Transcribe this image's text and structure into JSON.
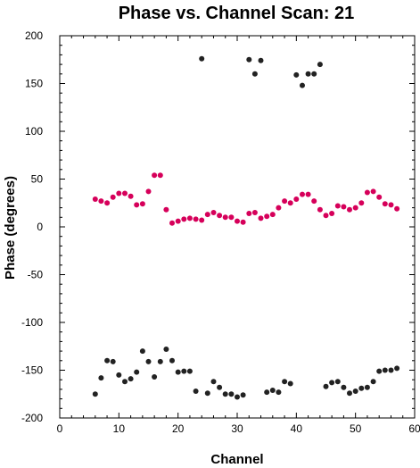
{
  "chart_data": {
    "type": "scatter",
    "title": "Phase vs. Channel Scan: 21",
    "xlabel": "Channel",
    "ylabel": "Phase (degrees)",
    "xlim": [
      0,
      60
    ],
    "ylim": [
      -200,
      200
    ],
    "x_ticks": [
      0,
      10,
      20,
      30,
      40,
      50,
      60
    ],
    "y_ticks": [
      -200,
      -150,
      -100,
      -50,
      0,
      50,
      100,
      150,
      200
    ],
    "grid": false,
    "legend": "none",
    "series": [
      {
        "color": "#d6005a",
        "points": [
          [
            6,
            29
          ],
          [
            7,
            27
          ],
          [
            8,
            25
          ],
          [
            9,
            31
          ],
          [
            10,
            35
          ],
          [
            11,
            35
          ],
          [
            12,
            32
          ],
          [
            13,
            23
          ],
          [
            14,
            24
          ],
          [
            15,
            37
          ],
          [
            16,
            54
          ],
          [
            17,
            54
          ],
          [
            18,
            18
          ],
          [
            19,
            4
          ],
          [
            20,
            6
          ],
          [
            21,
            8
          ],
          [
            22,
            9
          ],
          [
            23,
            8
          ],
          [
            24,
            7
          ],
          [
            25,
            13
          ],
          [
            26,
            15
          ],
          [
            27,
            12
          ],
          [
            28,
            10
          ],
          [
            29,
            10
          ],
          [
            30,
            6
          ],
          [
            31,
            5
          ],
          [
            32,
            14
          ],
          [
            33,
            15
          ],
          [
            34,
            9
          ],
          [
            35,
            11
          ],
          [
            36,
            13
          ],
          [
            37,
            20
          ],
          [
            38,
            27
          ],
          [
            39,
            25
          ],
          [
            40,
            29
          ],
          [
            41,
            34
          ],
          [
            42,
            34
          ],
          [
            43,
            27
          ],
          [
            44,
            18
          ],
          [
            45,
            12
          ],
          [
            46,
            14
          ],
          [
            47,
            22
          ],
          [
            48,
            21
          ],
          [
            49,
            18
          ],
          [
            50,
            20
          ],
          [
            51,
            25
          ],
          [
            52,
            36
          ],
          [
            53,
            37
          ],
          [
            54,
            31
          ],
          [
            55,
            24
          ],
          [
            56,
            23
          ],
          [
            57,
            19
          ]
        ]
      },
      {
        "color": "#222222",
        "points": [
          [
            6,
            -175
          ],
          [
            7,
            -158
          ],
          [
            8,
            -140
          ],
          [
            9,
            -141
          ],
          [
            10,
            -155
          ],
          [
            11,
            -162
          ],
          [
            12,
            -159
          ],
          [
            13,
            -152
          ],
          [
            14,
            -130
          ],
          [
            15,
            -141
          ],
          [
            16,
            -157
          ],
          [
            17,
            -141
          ],
          [
            18,
            -128
          ],
          [
            19,
            -140
          ],
          [
            20,
            -152
          ],
          [
            21,
            -151
          ],
          [
            22,
            -151
          ],
          [
            23,
            -172
          ],
          [
            24,
            176
          ],
          [
            25,
            -174
          ],
          [
            26,
            -162
          ],
          [
            27,
            -168
          ],
          [
            28,
            -175
          ],
          [
            29,
            -175
          ],
          [
            30,
            -178
          ],
          [
            31,
            -176
          ],
          [
            32,
            175
          ],
          [
            33,
            160
          ],
          [
            34,
            174
          ],
          [
            35,
            -173
          ],
          [
            36,
            -171
          ],
          [
            37,
            -173
          ],
          [
            38,
            -162
          ],
          [
            39,
            -164
          ],
          [
            40,
            159
          ],
          [
            41,
            148
          ],
          [
            42,
            160
          ],
          [
            43,
            160
          ],
          [
            44,
            170
          ],
          [
            45,
            -167
          ],
          [
            46,
            -163
          ],
          [
            47,
            -162
          ],
          [
            48,
            -168
          ],
          [
            49,
            -174
          ],
          [
            50,
            -172
          ],
          [
            51,
            -169
          ],
          [
            52,
            -168
          ],
          [
            53,
            -162
          ],
          [
            54,
            -151
          ],
          [
            55,
            -150
          ],
          [
            56,
            -150
          ],
          [
            57,
            -148
          ]
        ]
      }
    ]
  }
}
